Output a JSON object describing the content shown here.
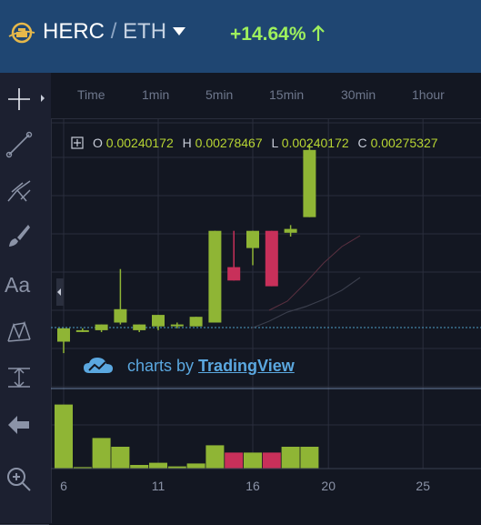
{
  "header": {
    "base": "HERC",
    "separator": "/",
    "quote": "ETH",
    "change": "+14.64%",
    "colors": {
      "bar": "#1f4672",
      "change": "#9ef05d"
    },
    "icons": [
      "herc-logo-icon",
      "chevron-down-icon",
      "arrow-up-icon"
    ]
  },
  "sidebar": {
    "tools": [
      {
        "name": "crosshair-tool",
        "icon": "crosshair-icon"
      },
      {
        "name": "trend-line-tool",
        "icon": "trend-line-icon"
      },
      {
        "name": "fib-tool",
        "icon": "pitchfork-icon"
      },
      {
        "name": "brush-tool",
        "icon": "brush-icon"
      },
      {
        "name": "text-tool",
        "icon": "text-icon",
        "label": "Aa"
      },
      {
        "name": "pattern-tool",
        "icon": "pattern-icon"
      },
      {
        "name": "measure-tool",
        "icon": "measure-icon"
      },
      {
        "name": "back-tool",
        "icon": "arrow-left-icon"
      },
      {
        "name": "zoom-tool",
        "icon": "zoom-in-icon"
      }
    ]
  },
  "intervals": [
    "Time",
    "1min",
    "5min",
    "15min",
    "30min",
    "1hour"
  ],
  "ohlc": {
    "o_label": "O",
    "o": "0.00240172",
    "h_label": "H",
    "h": "0.00278467",
    "l_label": "L",
    "l": "0.00240172",
    "c_label": "C",
    "c": "0.00275327"
  },
  "watermark": {
    "prefix": "charts by",
    "link": "TradingView"
  },
  "chart_data": {
    "type": "candlestick",
    "x_ticks": [
      "6",
      "11",
      "16",
      "20",
      "25"
    ],
    "colors": {
      "up": "#8fb535",
      "down": "#c8305a",
      "grid": "#2a2e3c"
    },
    "candles": [
      {
        "x": 6,
        "o": 0.00175,
        "h": 0.00182,
        "l": 0.00169,
        "c": 0.00182,
        "dir": "up"
      },
      {
        "x": 7,
        "o": 0.00181,
        "h": 0.00182,
        "l": 0.0018,
        "c": 0.00181,
        "dir": "up"
      },
      {
        "x": 8,
        "o": 0.00181,
        "h": 0.00184,
        "l": 0.0018,
        "c": 0.00184,
        "dir": "up"
      },
      {
        "x": 9,
        "o": 0.00185,
        "h": 0.00213,
        "l": 0.00184,
        "c": 0.00192,
        "dir": "up"
      },
      {
        "x": 10,
        "o": 0.00181,
        "h": 0.00184,
        "l": 0.0018,
        "c": 0.00184,
        "dir": "up"
      },
      {
        "x": 11,
        "o": 0.00183,
        "h": 0.00189,
        "l": 0.00181,
        "c": 0.00189,
        "dir": "up"
      },
      {
        "x": 12,
        "o": 0.00184,
        "h": 0.00185,
        "l": 0.00182,
        "c": 0.00184,
        "dir": "up"
      },
      {
        "x": 13,
        "o": 0.00183,
        "h": 0.00188,
        "l": 0.00183,
        "c": 0.00188,
        "dir": "up"
      },
      {
        "x": 14,
        "o": 0.00185,
        "h": 0.00233,
        "l": 0.00185,
        "c": 0.00233,
        "dir": "up"
      },
      {
        "x": 15,
        "o": 0.00214,
        "h": 0.00233,
        "l": 0.00207,
        "c": 0.00207,
        "dir": "down"
      },
      {
        "x": 16,
        "o": 0.00224,
        "h": 0.00233,
        "l": 0.00215,
        "c": 0.00233,
        "dir": "up"
      },
      {
        "x": 17,
        "o": 0.00233,
        "h": 0.00233,
        "l": 0.00204,
        "c": 0.00204,
        "dir": "down"
      },
      {
        "x": 18,
        "o": 0.00232,
        "h": 0.00236,
        "l": 0.0023,
        "c": 0.00234,
        "dir": "up"
      },
      {
        "x": 19,
        "o": 0.00240172,
        "h": 0.00278467,
        "l": 0.00240172,
        "c": 0.00275327,
        "dir": "up"
      }
    ],
    "volume": [
      {
        "x": 6,
        "v": 88,
        "dir": "up"
      },
      {
        "x": 7,
        "v": 2,
        "dir": "up"
      },
      {
        "x": 8,
        "v": 42,
        "dir": "up"
      },
      {
        "x": 9,
        "v": 30,
        "dir": "up"
      },
      {
        "x": 10,
        "v": 5,
        "dir": "up"
      },
      {
        "x": 11,
        "v": 8,
        "dir": "up"
      },
      {
        "x": 12,
        "v": 3,
        "dir": "up"
      },
      {
        "x": 13,
        "v": 7,
        "dir": "up"
      },
      {
        "x": 14,
        "v": 32,
        "dir": "up"
      },
      {
        "x": 15,
        "v": 22,
        "dir": "down"
      },
      {
        "x": 16,
        "v": 22,
        "dir": "up"
      },
      {
        "x": 17,
        "v": 22,
        "dir": "down"
      },
      {
        "x": 18,
        "v": 30,
        "dir": "up"
      },
      {
        "x": 19,
        "v": 30,
        "dir": "up"
      }
    ]
  }
}
